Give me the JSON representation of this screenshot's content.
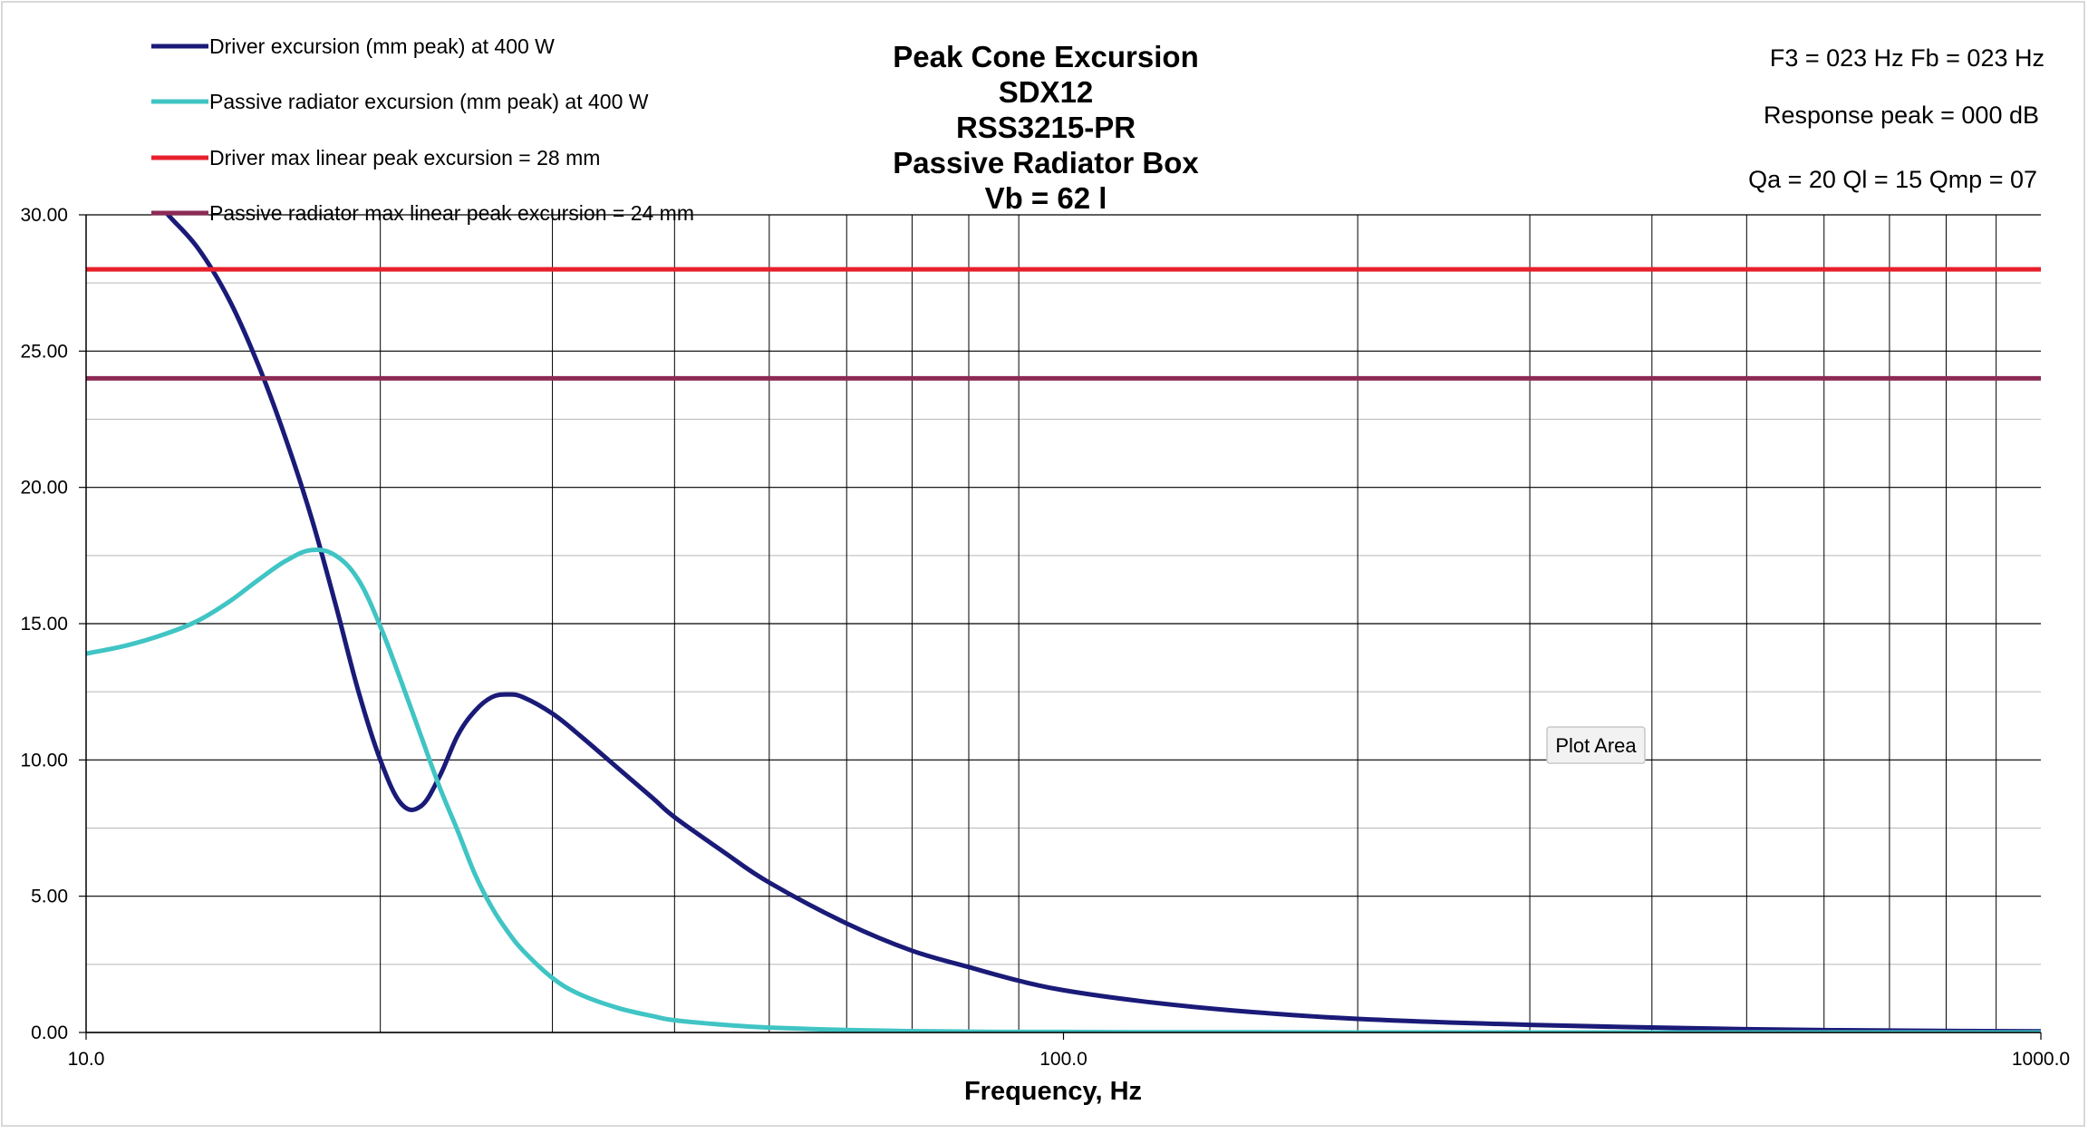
{
  "chart_data": {
    "type": "line",
    "title": [
      "Peak Cone Excursion",
      "SDX12",
      "RSS3215-PR",
      "Passive Radiator Box",
      "Vb = 62 l"
    ],
    "xlabel": "Frequency, Hz",
    "ylabel": "",
    "x_scale": "log",
    "xlim": [
      10,
      1000
    ],
    "ylim": [
      0,
      30
    ],
    "grid": true,
    "legend_position": "top-left",
    "x_ticks": [
      "10.0",
      "100.0",
      "1000.0"
    ],
    "y_ticks": [
      "0.00",
      "5.00",
      "10.00",
      "15.00",
      "20.00",
      "25.00",
      "30.00"
    ],
    "series": [
      {
        "name": "Driver excursion (mm peak) at 400 W",
        "color": "#1a1a78",
        "x": [
          10,
          11,
          12,
          13,
          14,
          15,
          16,
          17,
          18,
          19,
          20,
          21,
          22,
          23,
          24,
          25,
          26,
          27,
          28,
          30,
          32,
          35,
          38,
          40,
          45,
          50,
          60,
          70,
          80,
          90,
          100,
          120,
          150,
          200,
          300,
          500,
          700,
          1000
        ],
        "y": [
          33.5,
          32.0,
          30.2,
          28.8,
          26.9,
          24.5,
          21.8,
          18.9,
          15.7,
          12.5,
          10.0,
          8.4,
          8.3,
          9.4,
          10.9,
          11.8,
          12.3,
          12.4,
          12.3,
          11.7,
          10.9,
          9.7,
          8.6,
          7.9,
          6.6,
          5.5,
          4.0,
          3.0,
          2.4,
          1.9,
          1.55,
          1.15,
          0.8,
          0.5,
          0.28,
          0.12,
          0.07,
          0.04
        ]
      },
      {
        "name": "Passive radiator excursion (mm peak) at 400 W",
        "color": "#40c4c4",
        "x": [
          10,
          11,
          12,
          13,
          14,
          15,
          16,
          17,
          18,
          19,
          20,
          21,
          22,
          23,
          24,
          25,
          26,
          27,
          28,
          30,
          32,
          35,
          38,
          40,
          45,
          50,
          60,
          70,
          80,
          90,
          100,
          120,
          150,
          200,
          300,
          500,
          700,
          1000
        ],
        "y": [
          13.9,
          14.2,
          14.6,
          15.1,
          15.8,
          16.6,
          17.3,
          17.7,
          17.5,
          16.6,
          14.9,
          12.9,
          10.9,
          9.0,
          7.4,
          5.8,
          4.6,
          3.7,
          3.0,
          2.0,
          1.4,
          0.9,
          0.6,
          0.45,
          0.28,
          0.18,
          0.09,
          0.05,
          0.03,
          0.02,
          0.02,
          0.01,
          0.01,
          0.0,
          0.0,
          0.0,
          0.0,
          0.0
        ]
      },
      {
        "name": "Driver max linear peak excursion = 28 mm",
        "color": "#e8202c",
        "x": [
          10,
          1000
        ],
        "y": [
          28,
          28
        ]
      },
      {
        "name": "Passive radiator max linear peak excursion = 24 mm",
        "color": "#8c2a55",
        "x": [
          10,
          1000
        ],
        "y": [
          24,
          24
        ]
      }
    ],
    "annotations": [
      "F3 = 023 Hz  Fb = 023 Hz",
      "Response peak = 000 dB",
      "Qa = 20  Ql = 15  Qmp = 07"
    ],
    "tooltip": "Plot Area"
  }
}
